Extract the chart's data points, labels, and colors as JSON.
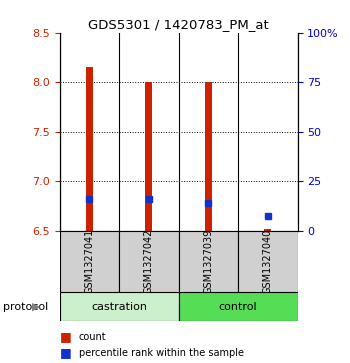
{
  "title": "GDS5301 / 1420783_PM_at",
  "samples": [
    "GSM1327041",
    "GSM1327042",
    "GSM1327039",
    "GSM1327040"
  ],
  "bar_bottoms": [
    6.5,
    6.5,
    6.5,
    6.5
  ],
  "bar_tops": [
    8.15,
    8.0,
    8.0,
    6.52
  ],
  "bar_color": "#cc2200",
  "blue_values": [
    6.82,
    6.82,
    6.78,
    6.65
  ],
  "blue_color": "#1133cc",
  "ylim_left": [
    6.5,
    8.5
  ],
  "ylim_right": [
    0,
    100
  ],
  "yticks_left": [
    6.5,
    7.0,
    7.5,
    8.0,
    8.5
  ],
  "yticks_right": [
    0,
    25,
    50,
    75,
    100
  ],
  "ytick_labels_right": [
    "0",
    "25",
    "50",
    "75",
    "100%"
  ],
  "bar_width": 0.12,
  "castration_color": "#ccf0cc",
  "control_color": "#55dd55",
  "label_bg": "#d0d0d0"
}
